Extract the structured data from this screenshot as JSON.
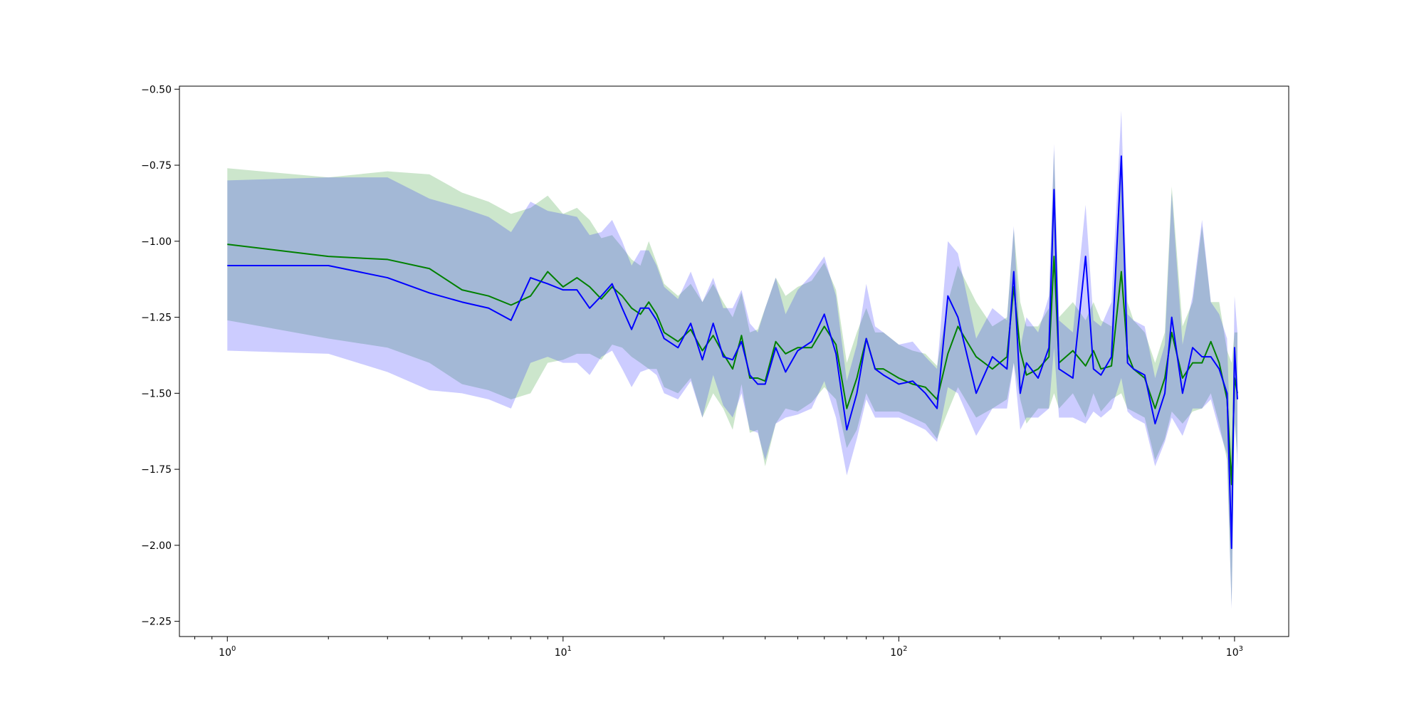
{
  "chart_data": {
    "type": "line",
    "title": "",
    "xlabel": "",
    "ylabel": "",
    "x_scale": "log",
    "xlim": [
      0.72,
      1450
    ],
    "ylim": [
      -2.3,
      -0.49
    ],
    "grid": false,
    "legend": "none",
    "x_ticks": [
      {
        "base": "10",
        "exp": "0",
        "value": 1
      },
      {
        "base": "10",
        "exp": "1",
        "value": 10
      },
      {
        "base": "10",
        "exp": "2",
        "value": 100
      },
      {
        "base": "10",
        "exp": "3",
        "value": 1000
      }
    ],
    "y_ticks": [
      {
        "value": -0.5,
        "label": "−0.50"
      },
      {
        "value": -0.75,
        "label": "−0.75"
      },
      {
        "value": -1.0,
        "label": "−1.00"
      },
      {
        "value": -1.25,
        "label": "−1.25"
      },
      {
        "value": -1.5,
        "label": "−1.50"
      },
      {
        "value": -1.75,
        "label": "−1.75"
      },
      {
        "value": -2.0,
        "label": "−2.00"
      },
      {
        "value": -2.25,
        "label": "−2.25"
      }
    ],
    "series": [
      {
        "color": "#008000",
        "band_color": "#008000",
        "x": [
          1,
          2,
          3,
          4,
          5,
          6,
          7,
          8,
          9,
          10,
          11,
          12,
          13,
          14,
          15,
          16,
          17,
          18,
          19,
          20,
          22,
          24,
          26,
          28,
          30,
          32,
          34,
          36,
          38,
          40,
          43,
          46,
          50,
          55,
          60,
          65,
          70,
          75,
          80,
          85,
          90,
          100,
          110,
          120,
          130,
          140,
          150,
          170,
          190,
          210,
          220,
          230,
          240,
          260,
          280,
          290,
          300,
          330,
          360,
          380,
          400,
          430,
          460,
          480,
          500,
          540,
          580,
          620,
          650,
          700,
          750,
          800,
          850,
          900,
          950,
          980,
          1000,
          1020
        ],
        "y": [
          -1.01,
          -1.05,
          -1.06,
          -1.09,
          -1.16,
          -1.18,
          -1.21,
          -1.18,
          -1.1,
          -1.15,
          -1.12,
          -1.15,
          -1.19,
          -1.15,
          -1.18,
          -1.22,
          -1.24,
          -1.2,
          -1.24,
          -1.3,
          -1.33,
          -1.29,
          -1.36,
          -1.31,
          -1.37,
          -1.42,
          -1.31,
          -1.45,
          -1.45,
          -1.46,
          -1.33,
          -1.37,
          -1.35,
          -1.35,
          -1.28,
          -1.34,
          -1.55,
          -1.45,
          -1.32,
          -1.42,
          -1.42,
          -1.45,
          -1.47,
          -1.48,
          -1.52,
          -1.37,
          -1.28,
          -1.38,
          -1.42,
          -1.38,
          -1.15,
          -1.36,
          -1.44,
          -1.42,
          -1.38,
          -1.05,
          -1.4,
          -1.36,
          -1.41,
          -1.36,
          -1.42,
          -1.41,
          -1.1,
          -1.37,
          -1.42,
          -1.45,
          -1.55,
          -1.45,
          -1.3,
          -1.45,
          -1.4,
          -1.4,
          -1.33,
          -1.4,
          -1.52,
          -1.8,
          -1.45,
          -1.5
        ],
        "lower": [
          -1.26,
          -1.32,
          -1.35,
          -1.4,
          -1.47,
          -1.49,
          -1.52,
          -1.5,
          -1.4,
          -1.39,
          -1.37,
          -1.37,
          -1.39,
          -1.34,
          -1.35,
          -1.38,
          -1.4,
          -1.42,
          -1.42,
          -1.48,
          -1.5,
          -1.45,
          -1.58,
          -1.5,
          -1.55,
          -1.62,
          -1.47,
          -1.63,
          -1.62,
          -1.74,
          -1.6,
          -1.55,
          -1.56,
          -1.53,
          -1.48,
          -1.52,
          -1.68,
          -1.62,
          -1.5,
          -1.56,
          -1.56,
          -1.56,
          -1.58,
          -1.6,
          -1.65,
          -1.56,
          -1.48,
          -1.58,
          -1.55,
          -1.52,
          -1.4,
          -1.52,
          -1.6,
          -1.55,
          -1.55,
          -1.5,
          -1.55,
          -1.5,
          -1.58,
          -1.5,
          -1.56,
          -1.52,
          -1.5,
          -1.55,
          -1.56,
          -1.58,
          -1.72,
          -1.65,
          -1.56,
          -1.6,
          -1.56,
          -1.55,
          -1.5,
          -1.6,
          -1.72,
          -2.2,
          -1.6,
          -1.7
        ],
        "upper": [
          -0.76,
          -0.79,
          -0.77,
          -0.78,
          -0.84,
          -0.87,
          -0.91,
          -0.89,
          -0.85,
          -0.91,
          -0.89,
          -0.93,
          -0.99,
          -0.98,
          -1.02,
          -1.06,
          -1.08,
          -1.0,
          -1.07,
          -1.14,
          -1.18,
          -1.14,
          -1.2,
          -1.14,
          -1.2,
          -1.25,
          -1.17,
          -1.3,
          -1.29,
          -1.22,
          -1.12,
          -1.18,
          -1.15,
          -1.13,
          -1.07,
          -1.16,
          -1.4,
          -1.3,
          -1.22,
          -1.3,
          -1.3,
          -1.34,
          -1.36,
          -1.37,
          -1.41,
          -1.2,
          -1.08,
          -1.2,
          -1.28,
          -1.25,
          -0.96,
          -1.2,
          -1.28,
          -1.28,
          -1.22,
          -0.7,
          -1.25,
          -1.2,
          -1.26,
          -1.2,
          -1.26,
          -1.28,
          -0.78,
          -1.2,
          -1.26,
          -1.3,
          -1.4,
          -1.3,
          -0.82,
          -1.28,
          -1.2,
          -0.95,
          -1.2,
          -1.2,
          -1.36,
          -1.4,
          -1.3,
          -1.3
        ]
      },
      {
        "color": "#0000ff",
        "band_color": "#0000ff",
        "x": [
          1,
          2,
          3,
          4,
          5,
          6,
          7,
          8,
          9,
          10,
          11,
          12,
          13,
          14,
          15,
          16,
          17,
          18,
          19,
          20,
          22,
          24,
          26,
          28,
          30,
          32,
          34,
          36,
          38,
          40,
          43,
          46,
          50,
          55,
          60,
          65,
          70,
          75,
          80,
          85,
          90,
          100,
          110,
          120,
          130,
          140,
          150,
          170,
          190,
          210,
          220,
          230,
          240,
          260,
          280,
          290,
          300,
          330,
          360,
          380,
          400,
          430,
          460,
          480,
          500,
          540,
          580,
          620,
          650,
          700,
          750,
          800,
          850,
          900,
          950,
          980,
          1000,
          1020
        ],
        "y": [
          -1.08,
          -1.08,
          -1.12,
          -1.17,
          -1.2,
          -1.22,
          -1.26,
          -1.12,
          -1.14,
          -1.16,
          -1.16,
          -1.22,
          -1.18,
          -1.14,
          -1.22,
          -1.29,
          -1.22,
          -1.22,
          -1.26,
          -1.32,
          -1.35,
          -1.27,
          -1.39,
          -1.27,
          -1.38,
          -1.39,
          -1.33,
          -1.44,
          -1.47,
          -1.47,
          -1.35,
          -1.43,
          -1.36,
          -1.33,
          -1.24,
          -1.37,
          -1.62,
          -1.5,
          -1.32,
          -1.42,
          -1.44,
          -1.47,
          -1.46,
          -1.5,
          -1.55,
          -1.18,
          -1.25,
          -1.5,
          -1.38,
          -1.42,
          -1.1,
          -1.5,
          -1.4,
          -1.45,
          -1.35,
          -0.83,
          -1.42,
          -1.45,
          -1.05,
          -1.42,
          -1.44,
          -1.38,
          -0.72,
          -1.4,
          -1.42,
          -1.44,
          -1.6,
          -1.5,
          -1.25,
          -1.5,
          -1.35,
          -1.38,
          -1.38,
          -1.42,
          -1.5,
          -2.01,
          -1.35,
          -1.52
        ],
        "lower": [
          -1.36,
          -1.37,
          -1.43,
          -1.49,
          -1.5,
          -1.52,
          -1.55,
          -1.4,
          -1.38,
          -1.4,
          -1.4,
          -1.44,
          -1.38,
          -1.36,
          -1.42,
          -1.48,
          -1.43,
          -1.42,
          -1.44,
          -1.5,
          -1.52,
          -1.46,
          -1.58,
          -1.44,
          -1.54,
          -1.58,
          -1.5,
          -1.62,
          -1.63,
          -1.72,
          -1.6,
          -1.58,
          -1.57,
          -1.55,
          -1.46,
          -1.58,
          -1.77,
          -1.65,
          -1.52,
          -1.58,
          -1.58,
          -1.58,
          -1.6,
          -1.62,
          -1.66,
          -1.48,
          -1.5,
          -1.64,
          -1.55,
          -1.55,
          -1.4,
          -1.62,
          -1.58,
          -1.58,
          -1.55,
          -1.35,
          -1.58,
          -1.58,
          -1.6,
          -1.56,
          -1.58,
          -1.55,
          -1.45,
          -1.56,
          -1.58,
          -1.6,
          -1.74,
          -1.66,
          -1.58,
          -1.64,
          -1.55,
          -1.55,
          -1.52,
          -1.62,
          -1.7,
          -2.21,
          -1.55,
          -1.75
        ],
        "upper": [
          -0.8,
          -0.79,
          -0.79,
          -0.86,
          -0.89,
          -0.92,
          -0.97,
          -0.87,
          -0.9,
          -0.91,
          -0.92,
          -0.98,
          -0.97,
          -0.93,
          -1.0,
          -1.08,
          -1.03,
          -1.03,
          -1.08,
          -1.15,
          -1.19,
          -1.1,
          -1.2,
          -1.12,
          -1.22,
          -1.22,
          -1.16,
          -1.27,
          -1.3,
          -1.22,
          -1.12,
          -1.24,
          -1.16,
          -1.11,
          -1.05,
          -1.18,
          -1.46,
          -1.34,
          -1.14,
          -1.28,
          -1.3,
          -1.34,
          -1.33,
          -1.38,
          -1.42,
          -1.0,
          -1.04,
          -1.32,
          -1.22,
          -1.26,
          -0.95,
          -1.35,
          -1.25,
          -1.3,
          -1.18,
          -0.68,
          -1.26,
          -1.3,
          -0.88,
          -1.26,
          -1.28,
          -1.2,
          -0.57,
          -1.24,
          -1.26,
          -1.28,
          -1.45,
          -1.34,
          -0.84,
          -1.34,
          -1.18,
          -0.93,
          -1.2,
          -1.24,
          -1.32,
          -1.8,
          -1.18,
          -1.3
        ]
      }
    ]
  }
}
